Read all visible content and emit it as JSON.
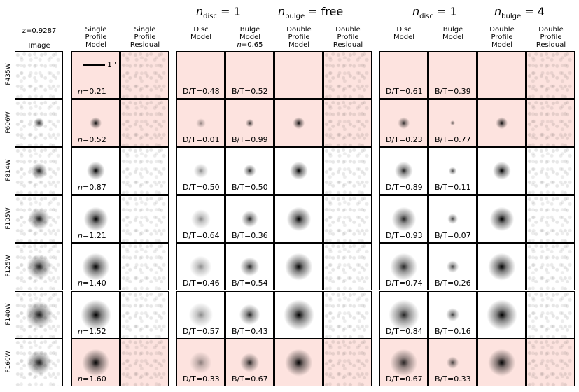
{
  "redshift_label": "z=0.9287",
  "image_header": "Image",
  "group_headers": {
    "free_disc": "n",
    "free_disc_sub": "disc",
    "free_disc_eq": " = 1",
    "free_bulge": "n",
    "free_bulge_sub": "bulge",
    "free_bulge_eq": " =  free",
    "fixed_disc": "n",
    "fixed_disc_sub": "disc",
    "fixed_disc_eq": " = 1",
    "fixed_bulge": "n",
    "fixed_bulge_sub": "bulge",
    "fixed_bulge_eq": " = 4"
  },
  "column_headers": [
    {
      "l1": "Single",
      "l2": "Profile",
      "l3": "Model"
    },
    {
      "l1": "Single",
      "l2": "Profile",
      "l3": "Residual"
    },
    {
      "l1": "Disc",
      "l2": "Model",
      "l3": ""
    },
    {
      "l1": "Bulge",
      "l2": "Model",
      "l3": "n=0.65"
    },
    {
      "l1": "Double",
      "l2": "Profile",
      "l3": "Model"
    },
    {
      "l1": "Double",
      "l2": "Profile",
      "l3": "Residual"
    },
    {
      "l1": "Disc",
      "l2": "Model",
      "l3": ""
    },
    {
      "l1": "Bulge",
      "l2": "Model",
      "l3": ""
    },
    {
      "l1": "Double",
      "l2": "Profile",
      "l3": "Model"
    },
    {
      "l1": "Double",
      "l2": "Profile",
      "l3": "Residual"
    }
  ],
  "scale_label": "1''",
  "filters": [
    "F435W",
    "F606W",
    "F814W",
    "F105W",
    "F125W",
    "F140W",
    "F160W"
  ],
  "single_n": [
    "n=0.21",
    "n=0.52",
    "n=0.87",
    "n=1.21",
    "n=1.40",
    "n=1.52",
    "n=1.60"
  ],
  "free_dt": [
    "D/T=0.48",
    "D/T=0.01",
    "D/T=0.50",
    "D/T=0.64",
    "D/T=0.46",
    "D/T=0.57",
    "D/T=0.33"
  ],
  "free_bt": [
    "B/T=0.52",
    "B/T=0.99",
    "B/T=0.50",
    "B/T=0.36",
    "B/T=0.54",
    "B/T=0.43",
    "B/T=0.67"
  ],
  "fixed_dt": [
    "D/T=0.61",
    "D/T=0.23",
    "D/T=0.89",
    "D/T=0.93",
    "D/T=0.74",
    "D/T=0.84",
    "D/T=0.67"
  ],
  "fixed_bt": [
    "B/T=0.39",
    "B/T=0.77",
    "B/T=0.11",
    "B/T=0.07",
    "B/T=0.26",
    "B/T=0.16",
    "B/T=0.33"
  ],
  "pink_rows": [
    0,
    1,
    6
  ],
  "colors": {
    "pink_panel": "#fde3df",
    "border": "#000000"
  }
}
